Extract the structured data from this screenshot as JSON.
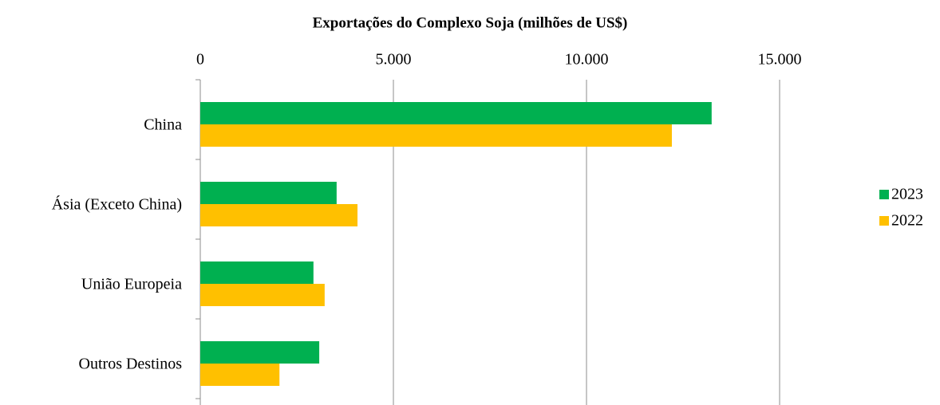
{
  "chart_data": {
    "type": "hbar",
    "title": "Exportações do Complexo Soja (milhões de US$)",
    "categories": [
      "China",
      "Ásia (Exceto China)",
      "União Europeia",
      "Outros Destinos"
    ],
    "series": [
      {
        "name": "2023",
        "color": "#00b050",
        "values": [
          13240,
          3530,
          2930,
          3080
        ]
      },
      {
        "name": "2022",
        "color": "#ffc000",
        "values": [
          12210,
          4070,
          3220,
          2050
        ]
      }
    ],
    "xlim": [
      0,
      15000
    ],
    "xticks": [
      0,
      {
        "value": 5000,
        "label": "5.000"
      },
      {
        "value": 10000,
        "label": "10.000"
      },
      {
        "value": 15000,
        "label": "15.000"
      }
    ],
    "grid": true,
    "legend": "right"
  }
}
